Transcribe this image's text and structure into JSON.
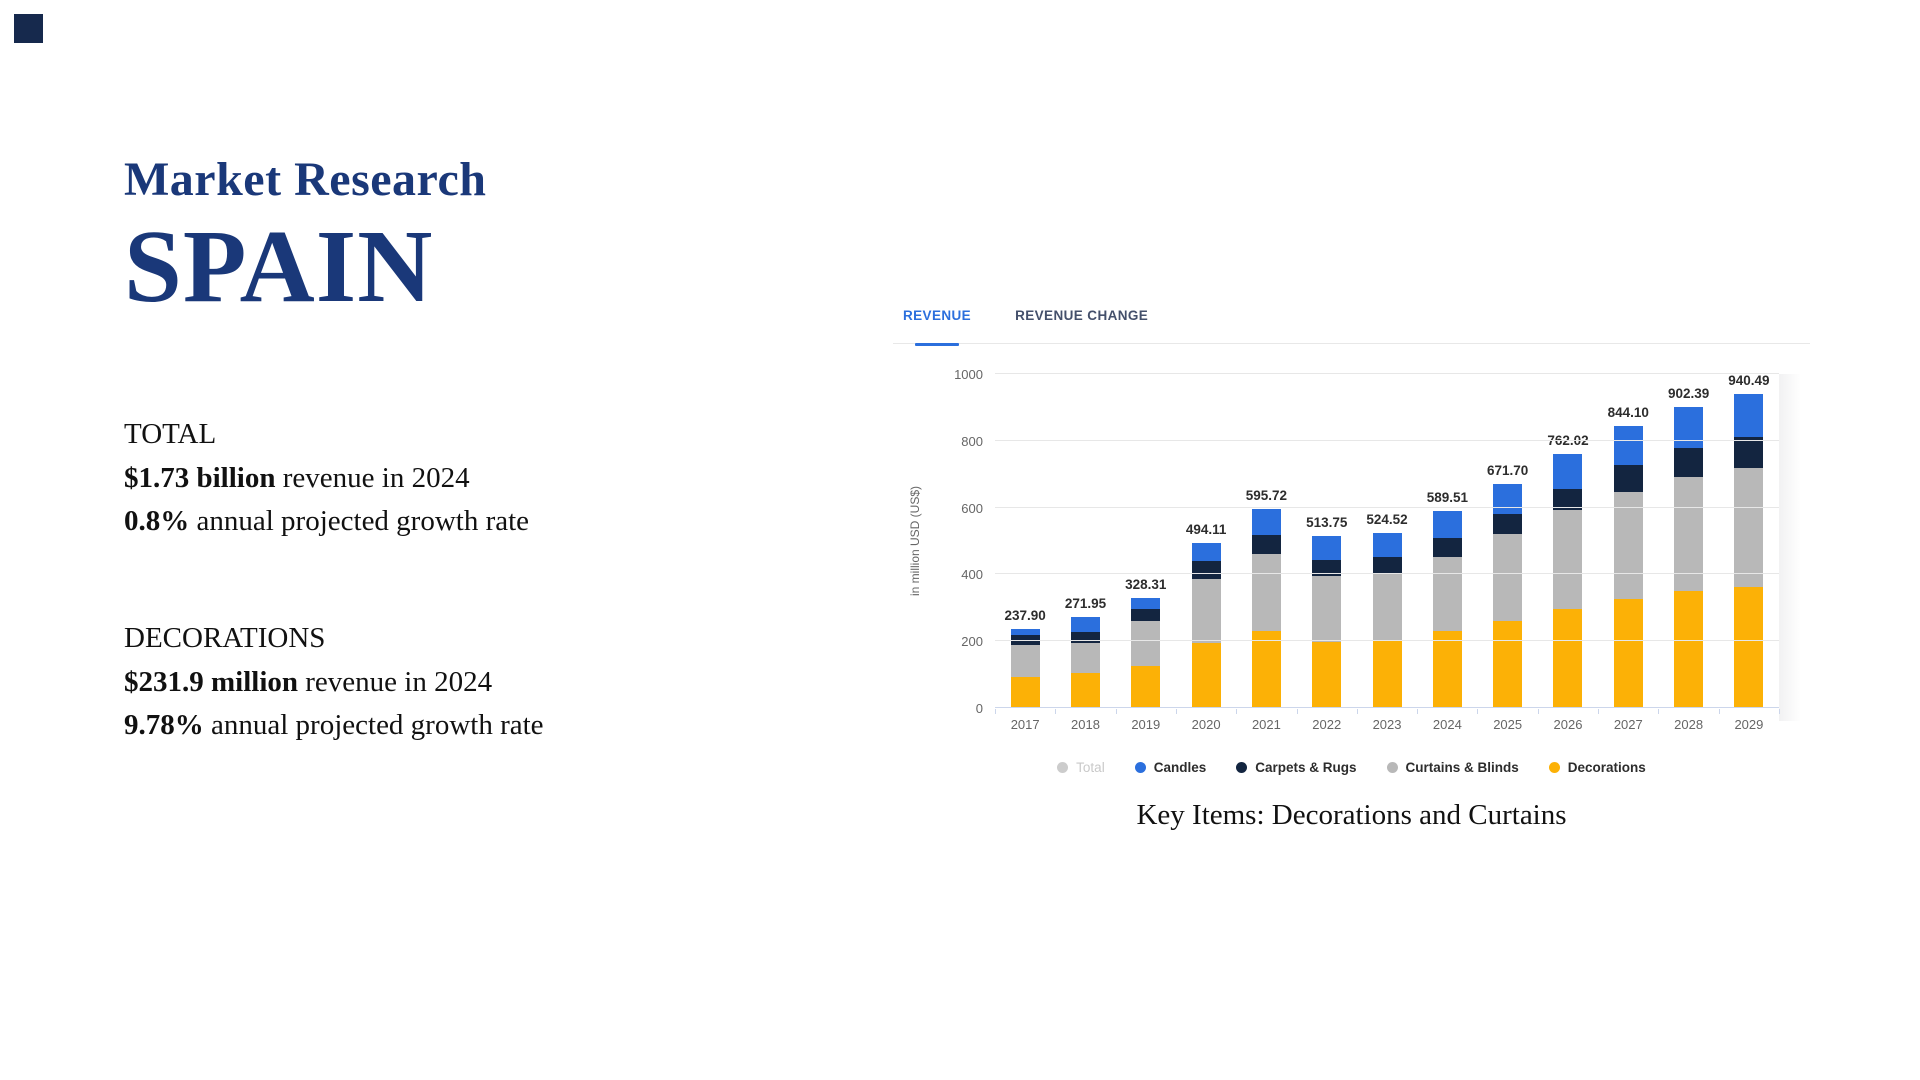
{
  "hero": {
    "title": "Market Research",
    "country": "SPAIN"
  },
  "stats": {
    "total": {
      "heading": "TOTAL",
      "revenue_value": "$1.73 billion",
      "revenue_rest": " revenue in 2024",
      "growth_value": "0.8%",
      "growth_rest": " annual projected growth rate"
    },
    "decorations": {
      "heading": "DECORATIONS",
      "revenue_value": "$231.9 million",
      "revenue_rest": " revenue in 2024",
      "growth_value": "9.78%",
      "growth_rest": " annual projected growth rate"
    }
  },
  "chart_widget": {
    "tabs": [
      {
        "label": "REVENUE",
        "active": true
      },
      {
        "label": "REVENUE CHANGE",
        "active": false
      }
    ],
    "caption": "Key Items: Decorations and Curtains"
  },
  "chart_data": {
    "type": "bar",
    "stacked": true,
    "title": "",
    "xlabel": "",
    "ylabel": "in million USD (US$)",
    "ylim": [
      0,
      1000
    ],
    "yticks": [
      0,
      200,
      400,
      600,
      800,
      1000
    ],
    "grid": true,
    "legend_position": "bottom",
    "categories": [
      "2017",
      "2018",
      "2019",
      "2020",
      "2021",
      "2022",
      "2023",
      "2024",
      "2025",
      "2026",
      "2027",
      "2028",
      "2029"
    ],
    "totals": [
      237.9,
      271.95,
      328.31,
      494.11,
      595.72,
      513.75,
      524.52,
      589.51,
      671.7,
      762.02,
      844.1,
      902.39,
      940.49
    ],
    "total_labels": [
      "237.90",
      "271.95",
      "328.31",
      "494.11",
      "595.72",
      "513.75",
      "524.52",
      "589.51",
      "671.70",
      "762.02",
      "844.10",
      "902.39",
      "940.49"
    ],
    "series": [
      {
        "name": "Decorations",
        "color": "#fcb106",
        "values": [
          92,
          104,
          127,
          195,
          232,
          197,
          200,
          231.9,
          261,
          295,
          327,
          350,
          362
        ]
      },
      {
        "name": "Curtains & Blinds",
        "color": "#b8b8b8",
        "values": [
          96,
          92,
          133,
          190,
          230,
          198,
          202,
          220.1,
          260,
          297,
          321,
          342,
          356
        ]
      },
      {
        "name": "Carpets & Rugs",
        "color": "#132540",
        "values": [
          30,
          32,
          35,
          55,
          56,
          47,
          50,
          57,
          59,
          63,
          79,
          86,
          92
        ]
      },
      {
        "name": "Candles",
        "color": "#2b6fdd",
        "values": [
          19.9,
          43.95,
          33.31,
          54.11,
          77.72,
          71.75,
          72.52,
          80.51,
          91.7,
          107.02,
          117.1,
          124.39,
          130.49
        ]
      }
    ],
    "legend": [
      {
        "label": "Total",
        "color": "#cccccc",
        "disabled": true
      },
      {
        "label": "Candles",
        "color": "#2b6fdd",
        "disabled": false
      },
      {
        "label": "Carpets & Rugs",
        "color": "#132540",
        "disabled": false
      },
      {
        "label": "Curtains & Blinds",
        "color": "#b8b8b8",
        "disabled": false
      },
      {
        "label": "Decorations",
        "color": "#fcb106",
        "disabled": false
      }
    ]
  },
  "colors": {
    "accent_blue": "#2b6fdd",
    "title_navy": "#1a3879",
    "axis_line": "#ccd6eb",
    "gridline": "#e7e7e7",
    "tick_text": "#666666"
  }
}
